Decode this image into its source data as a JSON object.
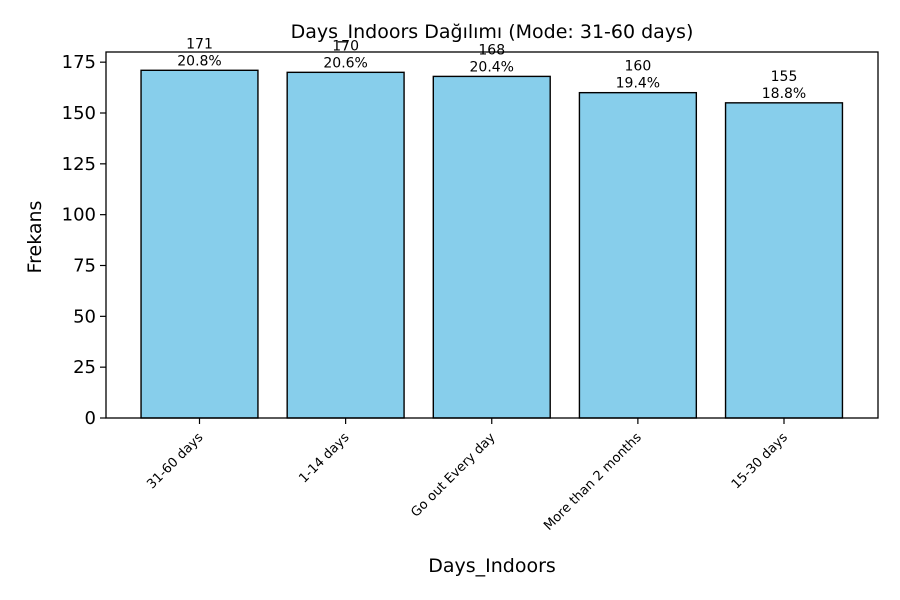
{
  "chart_data": {
    "type": "bar",
    "title": "Days_Indoors Dağılımı (Mode: 31-60 days)",
    "xlabel": "Days_Indoors",
    "ylabel": "Frekans",
    "categories": [
      "31-60 days",
      "1-14 days",
      "Go out Every day",
      "More than 2 months",
      "15-30 days"
    ],
    "values": [
      171,
      170,
      168,
      160,
      155
    ],
    "percent_labels": [
      "20.8%",
      "20.6%",
      "20.4%",
      "19.4%",
      "18.8%"
    ],
    "ylim": [
      0,
      180
    ],
    "yticks": [
      0,
      25,
      50,
      75,
      100,
      125,
      150,
      175
    ],
    "grid": false,
    "legend": "none",
    "bar_color": "#87ceeb",
    "edge_color": "#000000"
  }
}
